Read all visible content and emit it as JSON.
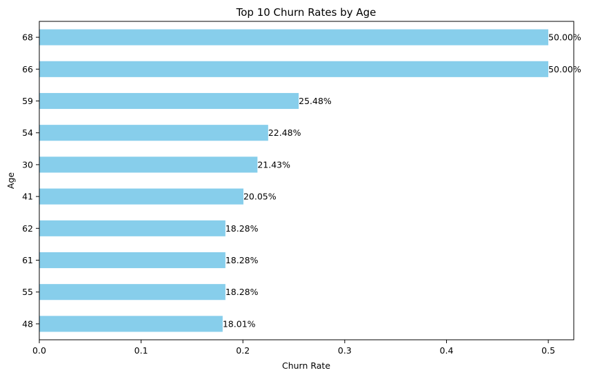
{
  "chart_data": {
    "type": "bar",
    "orientation": "horizontal",
    "title": "Top 10 Churn Rates by Age",
    "xlabel": "Churn Rate",
    "ylabel": "Age",
    "categories": [
      "68",
      "66",
      "59",
      "54",
      "30",
      "41",
      "62",
      "61",
      "55",
      "48"
    ],
    "values": [
      0.5,
      0.5,
      0.2548,
      0.2248,
      0.2143,
      0.2005,
      0.1828,
      0.1828,
      0.1828,
      0.1801
    ],
    "data_labels": [
      "50.00%",
      "50.00%",
      "25.48%",
      "22.48%",
      "21.43%",
      "20.05%",
      "18.28%",
      "18.28%",
      "18.28%",
      "18.01%"
    ],
    "xlim": [
      0,
      0.525
    ],
    "xticks": [
      0.0,
      0.1,
      0.2,
      0.3,
      0.4,
      0.5
    ],
    "xtick_labels": [
      "0.0",
      "0.1",
      "0.2",
      "0.3",
      "0.4",
      "0.5"
    ],
    "bar_color": "#87CEEB",
    "grid": false,
    "legend": "none"
  }
}
